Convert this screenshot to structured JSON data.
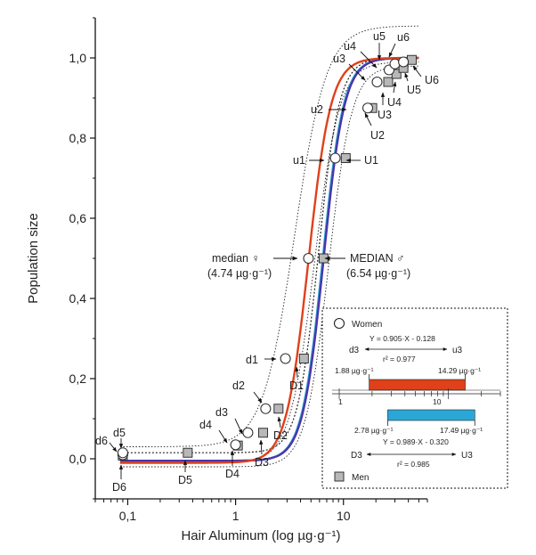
{
  "chart_data": {
    "type": "scatter",
    "xlabel": "Hair Aluminum (log µg·g⁻¹)",
    "ylabel": "Population size",
    "xscale": "log",
    "xlim": [
      0.05,
      60
    ],
    "ylim": [
      -0.1,
      1.1
    ],
    "x_ticks": [
      0.1,
      1,
      10
    ],
    "x_tick_labels": [
      "0,1",
      "1",
      "10"
    ],
    "y_ticks": [
      0.0,
      0.2,
      0.4,
      0.6,
      0.8,
      1.0
    ],
    "y_tick_labels": [
      "0,0",
      "0,2",
      "0,4",
      "0,6",
      "0,8",
      "1,0"
    ],
    "colors": {
      "women_fit": "#e0401a",
      "men_fit": "#4a35a8",
      "men_band": "#2aa7d6",
      "women_band": "#e0401a",
      "marker_men": "#b8b8b8"
    },
    "series": [
      {
        "name": "Women",
        "marker": "open-circle",
        "points": [
          {
            "label": "d6",
            "x": 0.09,
            "y": 0.01
          },
          {
            "label": "d5",
            "x": 0.09,
            "y": 0.015
          },
          {
            "label": "d4",
            "x": 1.0,
            "y": 0.035
          },
          {
            "label": "d3",
            "x": 1.3,
            "y": 0.065
          },
          {
            "label": "d2",
            "x": 1.9,
            "y": 0.125
          },
          {
            "label": "d1",
            "x": 2.9,
            "y": 0.25
          },
          {
            "label": "median ♀",
            "x": 4.74,
            "y": 0.5
          },
          {
            "label": "u1",
            "x": 8.4,
            "y": 0.75
          },
          {
            "label": "u2",
            "x": 16.8,
            "y": 0.875
          },
          {
            "label": "u3",
            "x": 20.5,
            "y": 0.94
          },
          {
            "label": "u4",
            "x": 26.5,
            "y": 0.97
          },
          {
            "label": "u5",
            "x": 30.0,
            "y": 0.985
          },
          {
            "label": "u6",
            "x": 36.0,
            "y": 0.99
          }
        ]
      },
      {
        "name": "Men",
        "marker": "grey-square",
        "points": [
          {
            "label": "D6",
            "x": 0.09,
            "y": 0.008
          },
          {
            "label": "D5",
            "x": 0.36,
            "y": 0.015
          },
          {
            "label": "D4",
            "x": 1.05,
            "y": 0.033
          },
          {
            "label": "D3",
            "x": 1.8,
            "y": 0.065
          },
          {
            "label": "D2",
            "x": 2.5,
            "y": 0.125
          },
          {
            "label": "D1",
            "x": 4.3,
            "y": 0.25
          },
          {
            "label": "MEDIAN ♂",
            "x": 6.54,
            "y": 0.5
          },
          {
            "label": "U1",
            "x": 10.5,
            "y": 0.75
          },
          {
            "label": "U2",
            "x": 18.5,
            "y": 0.875
          },
          {
            "label": "U3",
            "x": 26.0,
            "y": 0.94
          },
          {
            "label": "U4",
            "x": 31.0,
            "y": 0.96
          },
          {
            "label": "U5",
            "x": 36.0,
            "y": 0.975
          },
          {
            "label": "U6",
            "x": 43.0,
            "y": 0.995
          }
        ]
      }
    ],
    "fits": [
      {
        "name": "women-fit",
        "median": 4.74,
        "slope": 4.2
      },
      {
        "name": "men-fit",
        "median": 6.54,
        "slope": 4.5
      }
    ],
    "annotations": {
      "median_women_line1": "median ♀",
      "median_women_line2": "(4.74 µg·g⁻¹)",
      "median_men_line1": "MEDIAN ♂",
      "median_men_line2": "(6.54 µg·g⁻¹)"
    },
    "inset": {
      "legend_women": "Women",
      "legend_men": "Men",
      "women_eq": "Y = 0.905·X - 0.128",
      "women_r2": "r² = 0.977",
      "women_left": "d3",
      "women_right": "u3",
      "women_low": "1.88 µg·g⁻¹",
      "women_high": "14.29 µg·g⁻¹",
      "women_range": [
        1.88,
        14.29
      ],
      "scale_label_1": "1",
      "scale_label_10": "10",
      "men_low": "2.78 µg·g⁻¹",
      "men_high": "17.49 µg·g⁻¹",
      "men_range": [
        2.78,
        17.49
      ],
      "men_eq": "Y = 0.989·X - 0.320",
      "men_r2": "r² = 0.985",
      "men_left": "D3",
      "men_right": "U3"
    }
  }
}
